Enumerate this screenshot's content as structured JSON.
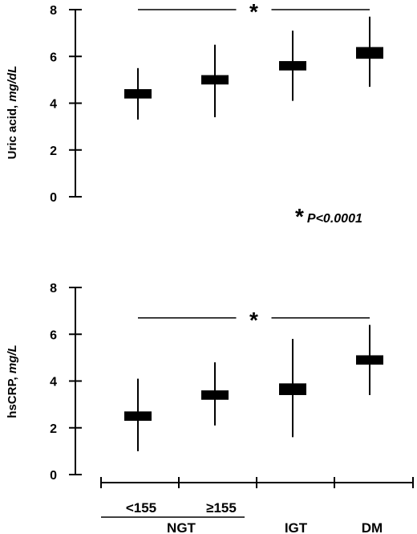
{
  "chart_data": [
    {
      "type": "box",
      "panel": "top",
      "ylabel": "Uric acid,",
      "ylabel_unit": "mg/dL",
      "ylim": [
        0,
        8
      ],
      "yticks": [
        "0",
        "2",
        "4",
        "6",
        "8"
      ],
      "grid": false,
      "categories": [
        "<155",
        "≥155",
        "IGT",
        "DM"
      ],
      "series": [
        {
          "values": [
            {
              "low": 3.3,
              "q1": 4.2,
              "q3": 4.6,
              "high": 5.5
            },
            {
              "low": 3.4,
              "q1": 4.8,
              "q3": 5.2,
              "high": 6.5
            },
            {
              "low": 4.1,
              "q1": 5.4,
              "q3": 5.8,
              "high": 7.1
            },
            {
              "low": 4.7,
              "q1": 5.9,
              "q3": 6.4,
              "high": 7.7
            }
          ]
        }
      ],
      "annotation": {
        "symbol": "*",
        "from_category": 0,
        "to_category": 3,
        "level": 8.0
      }
    },
    {
      "type": "box",
      "panel": "bottom",
      "ylabel": "hsCRP,",
      "ylabel_unit": "mg/L",
      "ylim": [
        0,
        8
      ],
      "yticks": [
        "0",
        "2",
        "4",
        "6",
        "8"
      ],
      "grid": false,
      "categories": [
        "<155",
        "≥155",
        "IGT",
        "DM"
      ],
      "series": [
        {
          "values": [
            {
              "low": 1.0,
              "q1": 2.3,
              "q3": 2.7,
              "high": 4.1
            },
            {
              "low": 2.1,
              "q1": 3.2,
              "q3": 3.6,
              "high": 4.8
            },
            {
              "low": 1.6,
              "q1": 3.4,
              "q3": 3.9,
              "high": 5.8
            },
            {
              "low": 3.4,
              "q1": 4.7,
              "q3": 5.1,
              "high": 6.4
            }
          ]
        }
      ],
      "annotation": {
        "symbol": "*",
        "from_category": 0,
        "to_category": 3,
        "level": 6.7
      }
    }
  ],
  "pvalue_note": {
    "symbol": "*",
    "text": "P<0.0001"
  },
  "x_axis": {
    "labels": [
      "<155",
      "≥155",
      "IGT",
      "DM"
    ],
    "group_label": "NGT"
  }
}
